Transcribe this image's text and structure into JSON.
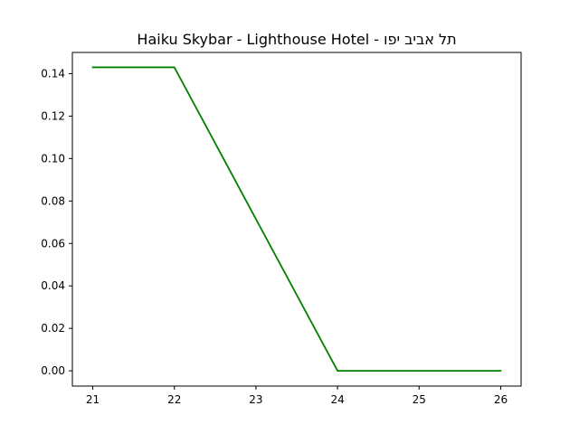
{
  "chart_data": {
    "type": "line",
    "title": "Haiku Skybar - Lighthouse Hotel - תל אביב יפו",
    "xlabel": "",
    "ylabel": "",
    "x": [
      21,
      22,
      23,
      24,
      25,
      26
    ],
    "xticks": [
      "21",
      "22",
      "23",
      "24",
      "25",
      "26"
    ],
    "yticks": [
      "0.00",
      "0.02",
      "0.04",
      "0.06",
      "0.08",
      "0.10",
      "0.12",
      "0.14"
    ],
    "xlim": [
      20.75,
      26.25
    ],
    "ylim": [
      -0.0072,
      0.15
    ],
    "grid": false,
    "series": [
      {
        "color": "#008000",
        "values": [
          0.143,
          0.143,
          0.0715,
          0.0,
          0.0,
          0.0
        ]
      }
    ]
  }
}
